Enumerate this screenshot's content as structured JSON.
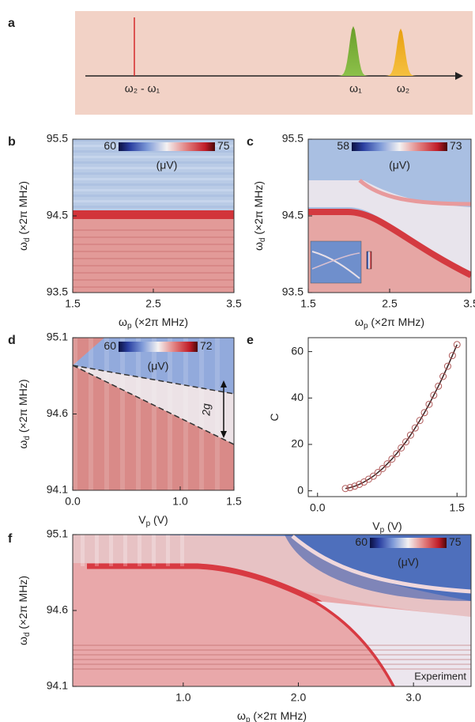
{
  "chart_data": [
    {
      "panel": "a",
      "type": "schematic",
      "labels": [
        "ω₂ - ω₁",
        "ω₁",
        "ω₂"
      ]
    },
    {
      "panel": "b",
      "type": "heatmap",
      "x_label": [
        "ω",
        "p",
        " (×2π MHz)"
      ],
      "y_label": [
        "ω",
        "d",
        " (×2π MHz)"
      ],
      "xlim": [
        1.5,
        3.5
      ],
      "xticks": [
        1.5,
        2.5,
        3.5
      ],
      "ylim": [
        93.5,
        95.5
      ],
      "yticks": [
        93.5,
        94.5,
        95.5
      ],
      "colorbar": {
        "ticks": [
          60,
          75
        ],
        "label": "(μV)"
      }
    },
    {
      "panel": "c",
      "type": "heatmap",
      "x_label": [
        "ω",
        "p",
        " (×2π MHz)"
      ],
      "y_label": [
        "ω",
        "d",
        " (×2π MHz)"
      ],
      "xlim": [
        1.5,
        3.5
      ],
      "xticks": [
        1.5,
        2.5,
        3.5
      ],
      "ylim": [
        93.5,
        95.5
      ],
      "yticks": [
        93.5,
        94.5,
        95.5
      ],
      "colorbar": {
        "ticks": [
          58,
          73
        ],
        "label": "(μV)"
      }
    },
    {
      "panel": "d",
      "type": "heatmap",
      "x_label": [
        "V",
        "p",
        " (V)"
      ],
      "y_label": [
        "ω",
        "d",
        " (×2π MHz)"
      ],
      "xlim": [
        0,
        1.5
      ],
      "xticks": [
        {
          "value": 0,
          "label": "0.0"
        },
        {
          "value": 1,
          "label": "1.0"
        },
        1.5
      ],
      "ylim": [
        94.1,
        95.1
      ],
      "yticks": [
        94.1,
        94.6,
        95.1
      ],
      "colorbar": {
        "ticks": [
          60,
          72
        ],
        "label": "(μV)"
      },
      "annotation": "2g"
    },
    {
      "panel": "e",
      "type": "scatter",
      "x_label": [
        "V",
        "p",
        " (V)"
      ],
      "y_label": [
        "C",
        "",
        ""
      ],
      "xlim": [
        -0.1,
        1.6
      ],
      "xticks": [
        {
          "value": 0,
          "label": "0.0"
        },
        1.5
      ],
      "ylim": [
        -2.5,
        66
      ],
      "yticks": [
        0,
        20,
        40,
        60
      ],
      "color": "#b05a5a",
      "line_color": "#3a2020",
      "x": [
        0.3,
        0.35,
        0.4,
        0.45,
        0.5,
        0.55,
        0.6,
        0.65,
        0.7,
        0.75,
        0.8,
        0.85,
        0.9,
        0.95,
        1.0,
        1.05,
        1.1,
        1.15,
        1.2,
        1.25,
        1.3,
        1.35,
        1.4,
        1.45,
        1.5
      ],
      "values": [
        1.0,
        1.4,
        2.0,
        2.8,
        3.8,
        5.0,
        6.3,
        7.9,
        9.6,
        11.6,
        13.7,
        16.0,
        18.5,
        21.1,
        24.0,
        27.1,
        30.3,
        33.7,
        37.3,
        41.2,
        45.1,
        49.3,
        53.7,
        58.3,
        63.0
      ]
    },
    {
      "panel": "f",
      "type": "heatmap",
      "x_label": [
        "ω",
        "p",
        " (×2π MHz)"
      ],
      "y_label": [
        "ω",
        "d",
        " (×2π MHz)"
      ],
      "xlim": [
        0.04,
        3.5
      ],
      "xticks": [
        {
          "value": 1,
          "label": "1.0"
        },
        {
          "value": 2,
          "label": "2.0"
        },
        {
          "value": 3,
          "label": "3.0"
        }
      ],
      "ylim": [
        94.1,
        95.1
      ],
      "yticks": [
        94.1,
        94.6,
        95.1
      ],
      "colorbar": {
        "ticks": [
          60,
          75
        ],
        "label": "(μV)"
      },
      "annotation": "Experiment"
    }
  ]
}
